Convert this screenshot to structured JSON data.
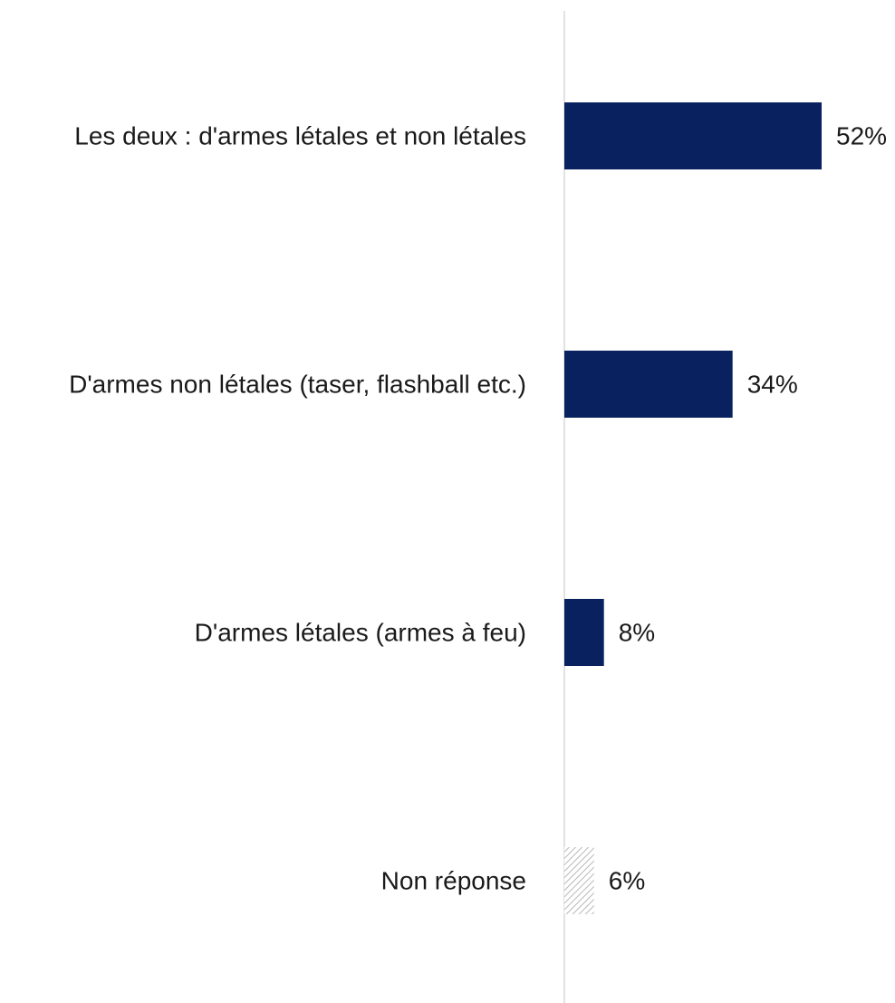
{
  "chart_data": {
    "type": "bar",
    "orientation": "horizontal",
    "categories": [
      "Les deux : d'armes létales et non létales",
      "D'armes non létales (taser, flashball etc.)",
      "D'armes létales (armes à feu)",
      "Non réponse"
    ],
    "values": [
      52,
      34,
      8,
      6
    ],
    "value_labels": [
      "52%",
      "34%",
      "8%",
      "6%"
    ],
    "bar_styles": [
      "solid",
      "solid",
      "solid",
      "hatched"
    ],
    "xlim": [
      0,
      52
    ],
    "title": "",
    "xlabel": "",
    "ylabel": "",
    "grid": false,
    "legend": "none",
    "colors": {
      "bar": "#0a2160",
      "hatch": "#b8b8b8",
      "axis": "#d9d9d9"
    }
  }
}
